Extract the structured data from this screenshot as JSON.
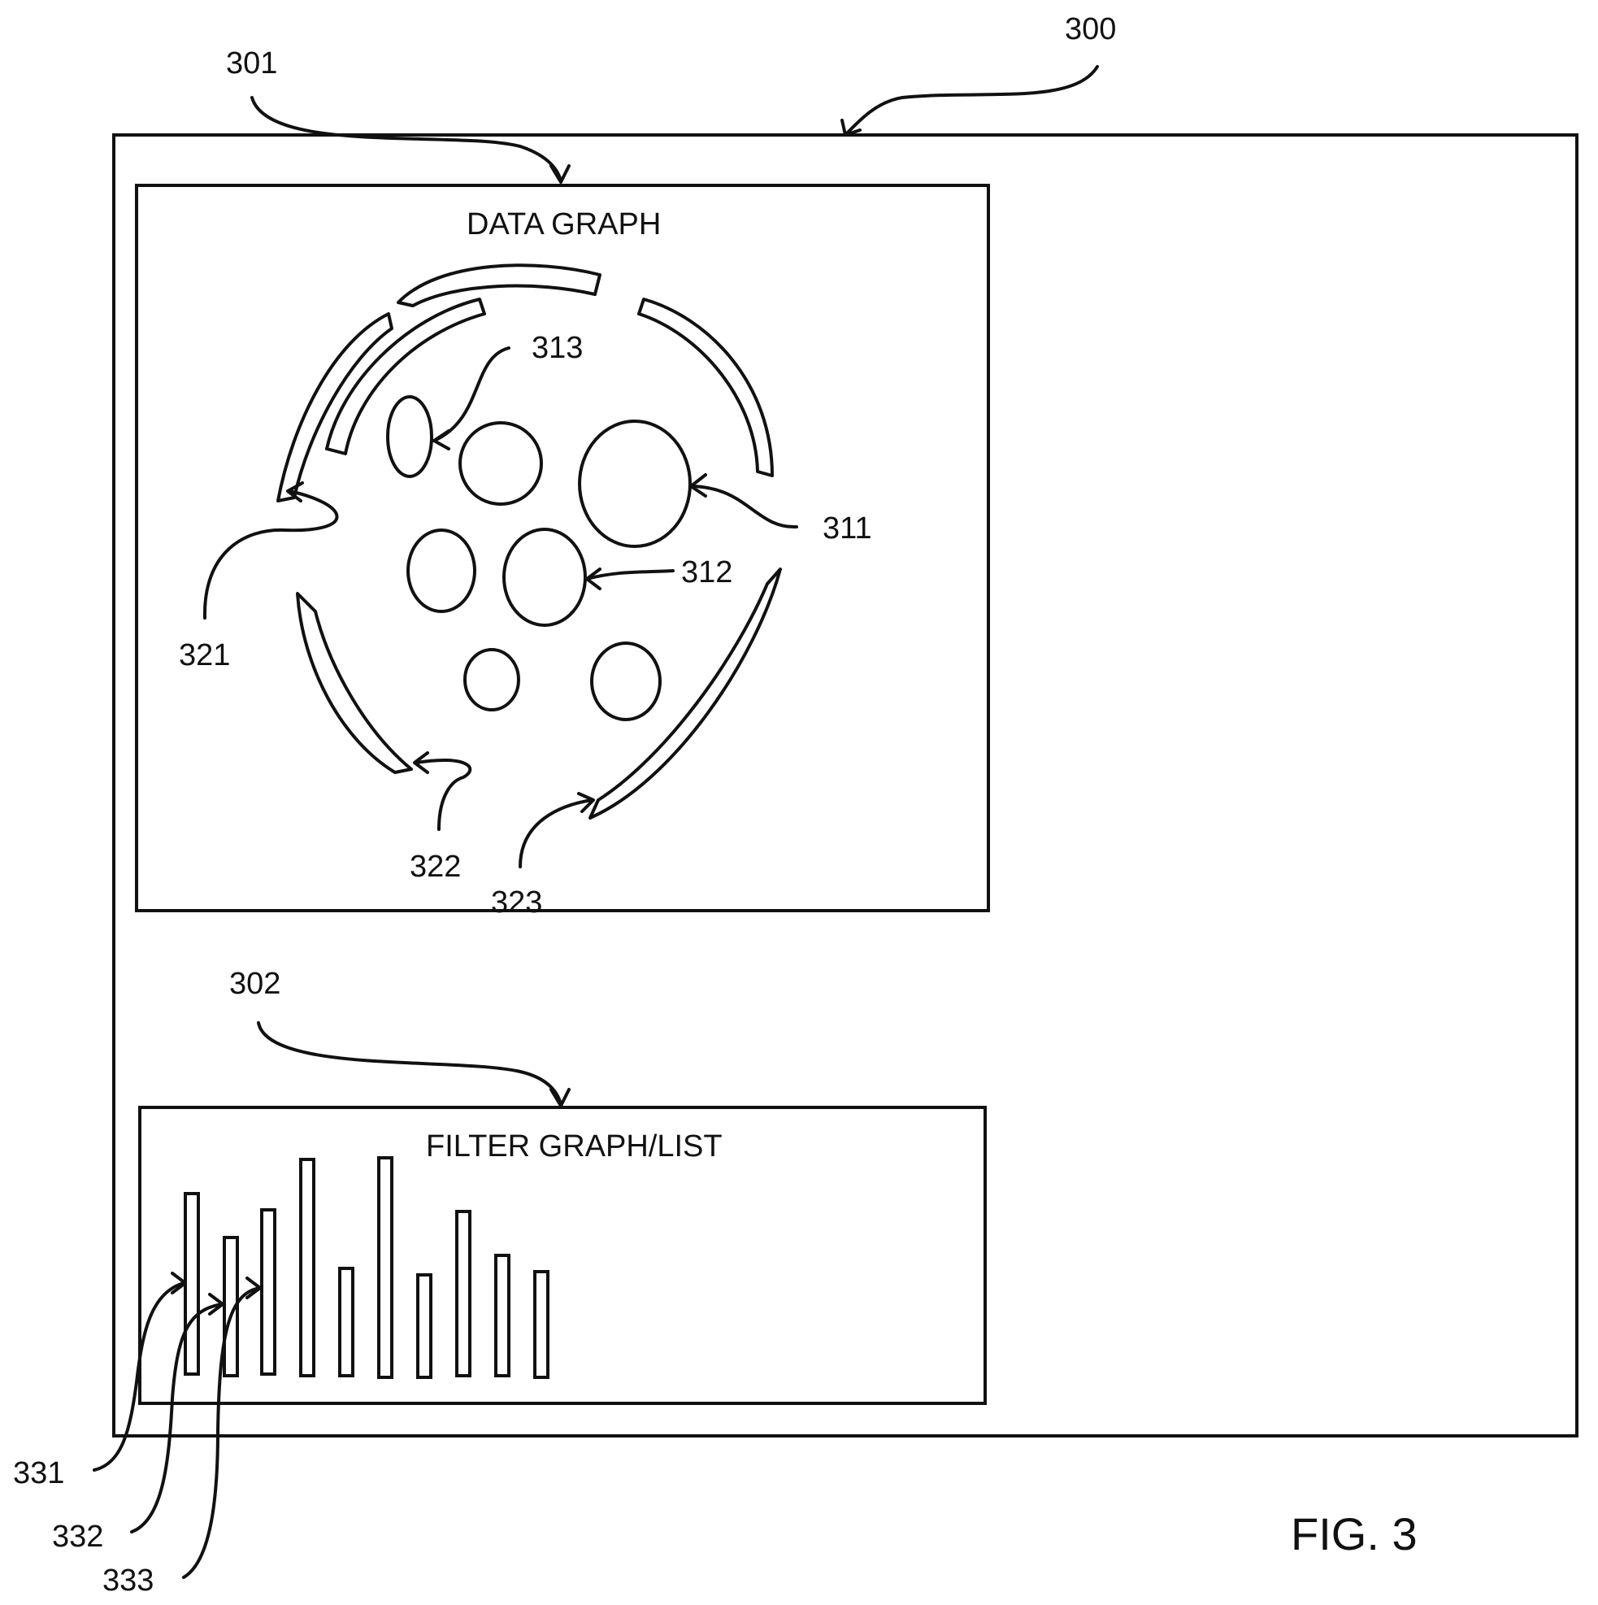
{
  "figure": {
    "window_ref": "300",
    "data_panel_ref": "301",
    "filter_panel_ref": "302",
    "caption": "FIG. 3"
  },
  "data_graph": {
    "title": "DATA GRAPH",
    "labels": {
      "node_large": "311",
      "node_mid": "312",
      "node_small": "313",
      "arc_upper_left": "321",
      "arc_lower_left": "322",
      "arc_lower_right": "323"
    }
  },
  "filter_graph": {
    "title": "FILTER GRAPH/LIST",
    "labels": {
      "bar_1": "331",
      "bar_2": "332",
      "bar_3": "333"
    }
  }
}
